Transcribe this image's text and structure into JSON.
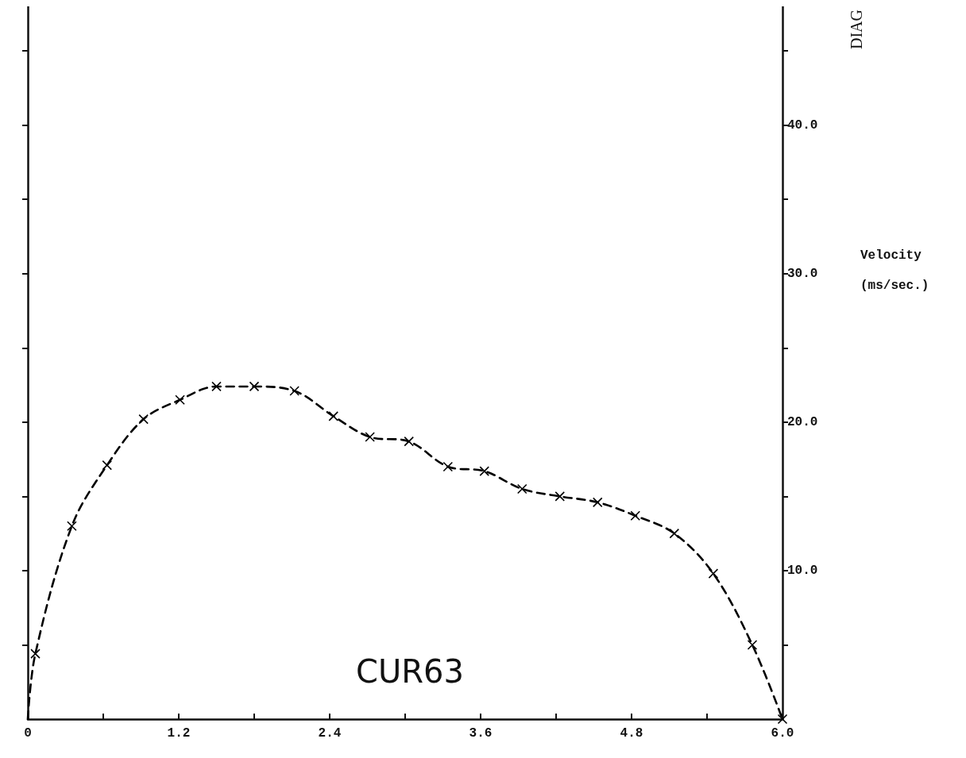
{
  "chart_data": {
    "type": "line",
    "x": [
      0,
      0.06,
      0.35,
      0.63,
      0.92,
      1.21,
      1.5,
      1.8,
      2.12,
      2.43,
      2.72,
      3.03,
      3.34,
      3.63,
      3.93,
      4.23,
      4.53,
      4.83,
      5.14,
      5.45,
      5.76,
      6.0
    ],
    "series": [
      {
        "color": "#000000",
        "values": [
          0,
          4.4,
          13.0,
          17.1,
          20.2,
          21.5,
          22.4,
          22.4,
          22.1,
          20.4,
          19.0,
          18.7,
          17.0,
          16.7,
          15.5,
          15.0,
          14.6,
          13.7,
          12.5,
          9.8,
          5.0,
          0
        ]
      }
    ],
    "xlim": [
      0,
      6.0
    ],
    "xticks": [
      0,
      {
        "value": 0.6,
        "label": null
      },
      1.2,
      {
        "value": 1.8,
        "label": null
      },
      2.4,
      {
        "value": 3.0,
        "label": null
      },
      3.6,
      {
        "value": 4.2,
        "label": null
      },
      4.8,
      {
        "value": 5.4,
        "label": null
      },
      {
        "value": 6,
        "label": "6.0"
      }
    ],
    "ylim": [
      0,
      48
    ],
    "yticks": [
      {
        "value": 5,
        "label": null
      },
      {
        "value": 10,
        "label": "10.0"
      },
      {
        "value": 15,
        "label": null
      },
      {
        "value": 20,
        "label": "20.0"
      },
      {
        "value": 25,
        "label": null
      },
      {
        "value": 30,
        "label": "30.0"
      },
      {
        "value": 35,
        "label": null
      },
      {
        "value": 40,
        "label": "40.0"
      },
      {
        "value": 45,
        "label": null
      }
    ],
    "ylabel": "Velocity\n(ms/sec.)",
    "annotations": [
      "CUR63",
      "DIAG"
    ],
    "marker": "cross",
    "line_style": "dashed",
    "grid": false
  }
}
